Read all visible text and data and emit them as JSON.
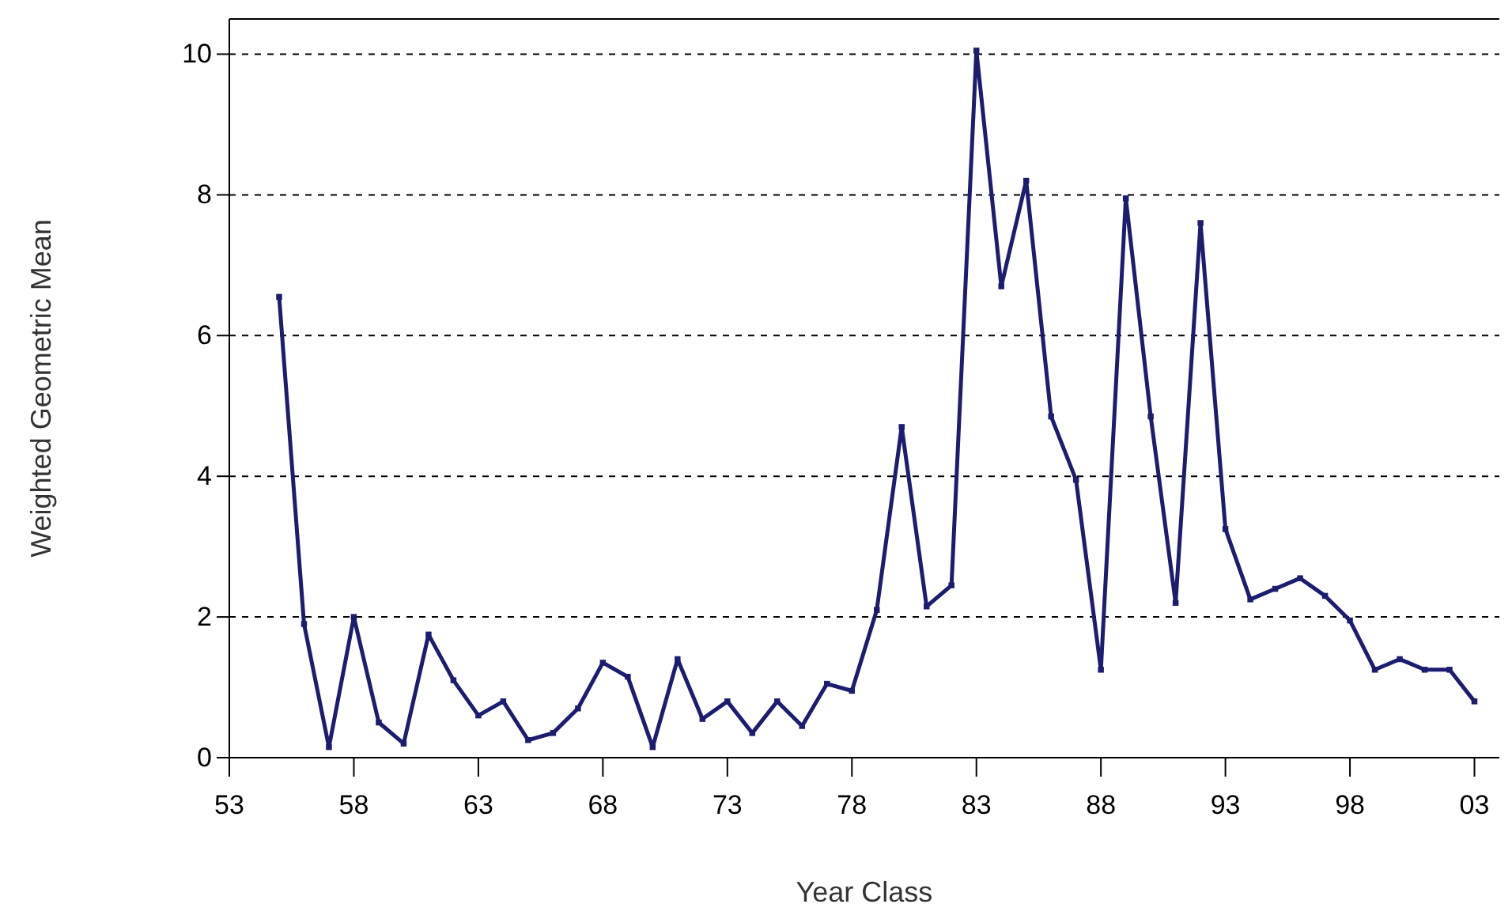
{
  "chart_data": {
    "type": "line",
    "xlabel": "Year Class",
    "ylabel": "Weighted Geometric Mean",
    "x": [
      1955,
      1956,
      1957,
      1958,
      1959,
      1960,
      1961,
      1962,
      1963,
      1964,
      1965,
      1966,
      1967,
      1968,
      1969,
      1970,
      1971,
      1972,
      1973,
      1974,
      1975,
      1976,
      1977,
      1978,
      1979,
      1980,
      1981,
      1982,
      1983,
      1984,
      1985,
      1986,
      1987,
      1988,
      1989,
      1990,
      1991,
      1992,
      1993,
      1994,
      1995,
      1996,
      1997,
      1998,
      1999,
      2000,
      2001,
      2002,
      2003
    ],
    "series": [
      {
        "color": "#1c1c70",
        "values": [
          6.55,
          1.9,
          0.15,
          2.0,
          0.5,
          0.2,
          1.75,
          1.1,
          0.6,
          0.8,
          0.25,
          0.35,
          0.7,
          1.35,
          1.15,
          0.15,
          1.4,
          0.55,
          0.8,
          0.35,
          0.8,
          0.45,
          1.05,
          0.95,
          2.1,
          4.7,
          2.15,
          2.45,
          10.05,
          6.7,
          8.2,
          4.85,
          3.95,
          1.25,
          7.95,
          4.85,
          2.2,
          7.6,
          3.25,
          2.25,
          2.4,
          2.55,
          2.3,
          1.95,
          1.25,
          1.4,
          1.25,
          1.25,
          0.8
        ]
      }
    ],
    "xlim": [
      1953,
      2004
    ],
    "ylim": [
      0,
      10.5
    ],
    "xticks": [
      {
        "value": 1953,
        "label": "53"
      },
      {
        "value": 1958,
        "label": "58"
      },
      {
        "value": 1963,
        "label": "63"
      },
      {
        "value": 1968,
        "label": "68"
      },
      {
        "value": 1973,
        "label": "73"
      },
      {
        "value": 1978,
        "label": "78"
      },
      {
        "value": 1983,
        "label": "83"
      },
      {
        "value": 1988,
        "label": "88"
      },
      {
        "value": 1993,
        "label": "93"
      },
      {
        "value": 1998,
        "label": "98"
      },
      {
        "value": 2003,
        "label": "03"
      }
    ],
    "yticks": [
      0,
      2,
      4,
      6,
      8,
      10
    ],
    "grid": "y",
    "marker": "square",
    "line_style": "solid"
  }
}
